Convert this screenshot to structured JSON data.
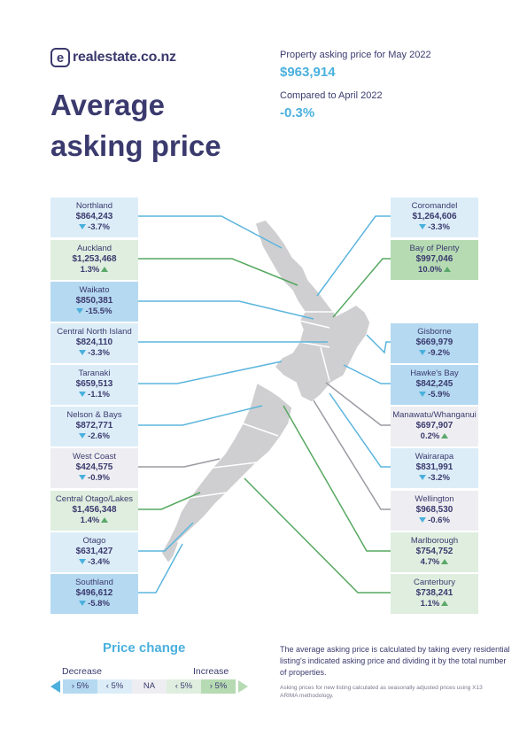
{
  "logo": {
    "mark": "e",
    "text": "realestate.co.nz"
  },
  "title": "Average asking price",
  "headline": {
    "label1": "Property asking price for May 2022",
    "value1": "$963,914",
    "label2": "Compared to April 2022",
    "value2": "-0.3%"
  },
  "colors": {
    "navy": "#3b3a6e",
    "accent_blue": "#4ab0dd",
    "decrease_big": "#b5d9f1",
    "decrease": "#dcedf8",
    "na": "#eeeef2",
    "increase": "#dfeedf",
    "increase_big": "#b6dbb3",
    "map_land": "#cfcfd1",
    "line_blue": "#5bb5dd",
    "line_green": "#56a860",
    "line_grey": "#9a9aa2"
  },
  "regions_left": [
    {
      "name": "Northland",
      "price": "$864,243",
      "change": "-3.7%",
      "dir": "down",
      "band": "dec"
    },
    {
      "name": "Auckland",
      "price": "$1,253,468",
      "change": "1.3%",
      "dir": "up",
      "band": "inc"
    },
    {
      "name": "Waikato",
      "price": "$850,381",
      "change": "-15.5%",
      "dir": "down",
      "band": "dec-big"
    },
    {
      "name": "Central North Island",
      "price": "$824,110",
      "change": "-3.3%",
      "dir": "down",
      "band": "dec"
    },
    {
      "name": "Taranaki",
      "price": "$659,513",
      "change": "-1.1%",
      "dir": "down",
      "band": "dec"
    },
    {
      "name": "Nelson & Bays",
      "price": "$872,771",
      "change": "-2.6%",
      "dir": "down",
      "band": "dec"
    },
    {
      "name": "West Coast",
      "price": "$424,575",
      "change": "-0.9%",
      "dir": "down",
      "band": "na"
    },
    {
      "name": "Central Otago/Lakes",
      "price": "$1,456,348",
      "change": "1.4%",
      "dir": "up",
      "band": "inc"
    },
    {
      "name": "Otago",
      "price": "$631,427",
      "change": "-3.4%",
      "dir": "down",
      "band": "dec"
    },
    {
      "name": "Southland",
      "price": "$496,612",
      "change": "-5.8%",
      "dir": "down",
      "band": "dec-big"
    }
  ],
  "regions_right": [
    {
      "name": "Coromandel",
      "price": "$1,264,606",
      "change": "-3.3%",
      "dir": "down",
      "band": "dec"
    },
    {
      "name": "Bay of Plenty",
      "price": "$997,046",
      "change": "10.0%",
      "dir": "up",
      "band": "inc-big"
    },
    {
      "name": "Gisborne",
      "price": "$669,979",
      "change": "-9.2%",
      "dir": "down",
      "band": "dec-big"
    },
    {
      "name": "Hawke's Bay",
      "price": "$842,245",
      "change": "-5.9%",
      "dir": "down",
      "band": "dec-big"
    },
    {
      "name": "Manawatu/Whanganui",
      "price": "$697,907",
      "change": "0.2%",
      "dir": "up",
      "band": "na"
    },
    {
      "name": "Wairarapa",
      "price": "$831,991",
      "change": "-3.2%",
      "dir": "down",
      "band": "dec"
    },
    {
      "name": "Wellington",
      "price": "$968,530",
      "change": "-0.6%",
      "dir": "down",
      "band": "na"
    },
    {
      "name": "Marlborough",
      "price": "$754,752",
      "change": "4.7%",
      "dir": "up",
      "band": "inc"
    },
    {
      "name": "Canterbury",
      "price": "$738,241",
      "change": "1.1%",
      "dir": "up",
      "band": "inc"
    }
  ],
  "legend": {
    "title": "Price change",
    "decrease": "Decrease",
    "increase": "Increase",
    "cells": [
      "› 5%",
      "‹ 5%",
      "NA",
      "‹ 5%",
      "› 5%"
    ]
  },
  "note": "The average asking price is calculated by taking every residential listing's indicated asking price and dividing it by the total number of properties.",
  "note_small": "Asking prices for new listing calculated as seasonally adjusted prices using X13 ARIMA methodology."
}
